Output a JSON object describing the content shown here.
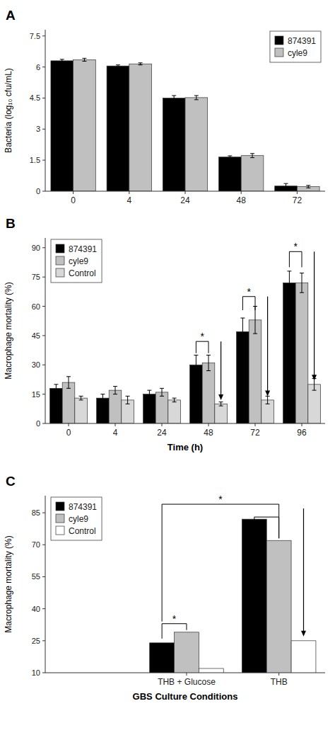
{
  "chart_data": [
    {
      "type": "bar",
      "title": "A",
      "categories": [
        "0",
        "4",
        "24",
        "48",
        "72"
      ],
      "series": [
        {
          "name": "874391",
          "color": "#000000",
          "values": [
            6.3,
            6.05,
            4.5,
            1.65,
            0.25
          ],
          "errors": [
            0.07,
            0.05,
            0.12,
            0.06,
            0.12
          ]
        },
        {
          "name": "cyle9",
          "color": "#c0c0c0",
          "values": [
            6.35,
            6.15,
            4.52,
            1.72,
            0.22
          ],
          "errors": [
            0.07,
            0.05,
            0.1,
            0.1,
            0.06
          ]
        }
      ],
      "ylabel": "Bacteria (log₁₀ cfu/mL)",
      "ylim": [
        0,
        7.8
      ],
      "yticks": [
        0,
        1.5,
        3,
        4.5,
        6,
        7.5
      ],
      "legend": "upper right",
      "grid": false
    },
    {
      "type": "bar",
      "title": "B",
      "categories": [
        "0",
        "4",
        "24",
        "48",
        "72",
        "96"
      ],
      "series": [
        {
          "name": "874391",
          "color": "#000000",
          "values": [
            18,
            13,
            15,
            30,
            47,
            72
          ],
          "errors": [
            2,
            2,
            2,
            5,
            7,
            6
          ]
        },
        {
          "name": "cyle9",
          "color": "#c0c0c0",
          "values": [
            21,
            17,
            16,
            31,
            53,
            72
          ],
          "errors": [
            3,
            2,
            2,
            4,
            7,
            5
          ]
        },
        {
          "name": "Control",
          "color": "#d8d8d8",
          "values": [
            13,
            12,
            12,
            10,
            12,
            20
          ],
          "errors": [
            1,
            2,
            1,
            1,
            2,
            3
          ]
        }
      ],
      "ylabel": "Macrophage mortality (%)",
      "xlabel": "Time (h)",
      "ylim": [
        0,
        95
      ],
      "yticks": [
        0,
        15,
        30,
        45,
        60,
        75,
        90
      ],
      "legend": "upper left",
      "grid": false,
      "annotations": [
        {
          "type": "bracket",
          "text": "*",
          "start": [
            3,
            0
          ],
          "end": [
            3,
            1
          ],
          "y_ends": [
            36,
            36
          ],
          "y": 42
        },
        {
          "type": "arrow",
          "at": [
            3,
            2
          ],
          "from": 42,
          "to": 12
        },
        {
          "type": "bracket",
          "text": "*",
          "start": [
            4,
            0
          ],
          "end": [
            4,
            1
          ],
          "y_ends": [
            58,
            58
          ],
          "y": 65
        },
        {
          "type": "arrow",
          "at": [
            4,
            2
          ],
          "from": 65,
          "to": 14
        },
        {
          "type": "bracket",
          "text": "*",
          "start": [
            5,
            0
          ],
          "end": [
            5,
            1
          ],
          "y_ends": [
            80,
            80
          ],
          "y": 88
        },
        {
          "type": "arrow",
          "at": [
            5,
            2
          ],
          "from": 88,
          "to": 22
        }
      ]
    },
    {
      "type": "bar",
      "title": "C",
      "categories": [
        "THB + Glucose",
        "THB"
      ],
      "series": [
        {
          "name": "874391",
          "color": "#000000",
          "values": [
            24,
            82
          ]
        },
        {
          "name": "cyle9",
          "color": "#c0c0c0",
          "values": [
            29,
            72
          ]
        },
        {
          "name": "Control",
          "color": "#ffffff",
          "values": [
            12,
            25
          ]
        }
      ],
      "ylabel": "Macrophage mortality (%)",
      "xlabel": "GBS Culture Conditions",
      "ylim": [
        10,
        93
      ],
      "yticks": [
        10,
        25,
        40,
        55,
        70,
        85
      ],
      "legend": "upper left",
      "grid": false,
      "annotations": [
        {
          "type": "bracket",
          "text": "*",
          "start": [
            0,
            0
          ],
          "end": [
            0,
            1
          ],
          "y_ends": [
            26,
            30
          ],
          "y": 33
        },
        {
          "type": "bracket",
          "text": "*",
          "start": [
            0,
            0
          ],
          "end": [
            1,
            1
          ],
          "y_ends": [
            34,
            73
          ],
          "y": 89
        },
        {
          "type": "bracket",
          "start": [
            1,
            0
          ],
          "end": [
            1,
            1
          ],
          "y_ends": [
            74,
            73
          ],
          "y": 83
        },
        {
          "type": "arrow",
          "at": [
            1,
            2
          ],
          "from": 87,
          "to": 27
        }
      ]
    }
  ]
}
